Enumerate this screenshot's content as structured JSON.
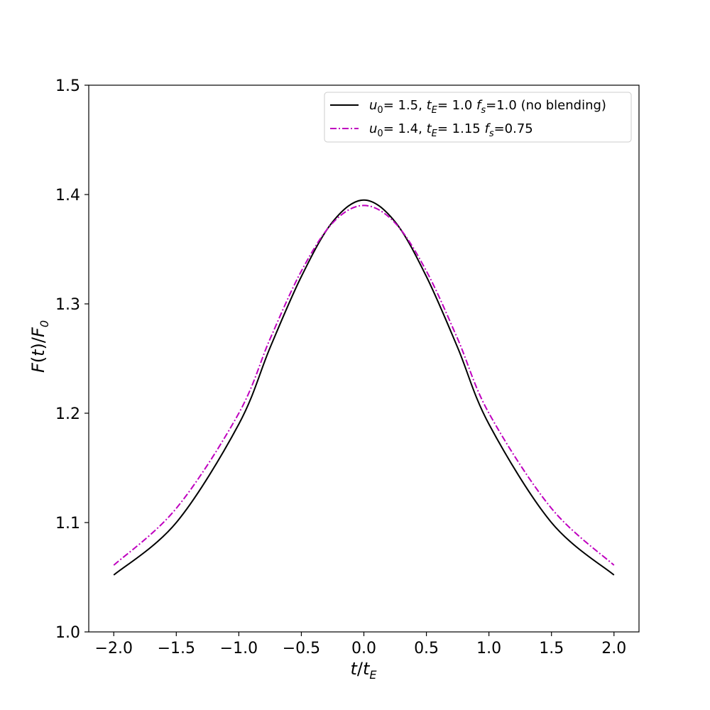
{
  "chart_data": {
    "type": "line",
    "title": "",
    "xlabel": "t/t_E",
    "ylabel": "F(t)/F_0",
    "xlim": [
      -2.2,
      2.2
    ],
    "ylim": [
      1.0,
      1.5
    ],
    "xticks": [
      -2.0,
      -1.5,
      -1.0,
      -0.5,
      0.0,
      0.5,
      1.0,
      1.5,
      2.0
    ],
    "xtick_labels": [
      "−2.0",
      "−1.5",
      "−1.0",
      "−0.5",
      "0.0",
      "0.5",
      "1.0",
      "1.5",
      "2.0"
    ],
    "yticks": [
      1.0,
      1.1,
      1.2,
      1.3,
      1.4,
      1.5
    ],
    "ytick_labels": [
      "1.0",
      "1.1",
      "1.2",
      "1.3",
      "1.4",
      "1.5"
    ],
    "grid": false,
    "legend_position": "top-right",
    "x": [
      -2.0,
      -1.5,
      -1.0,
      -0.75,
      -0.5,
      -0.25,
      0.0,
      0.25,
      0.5,
      0.75,
      1.0,
      1.5,
      2.0
    ],
    "series": [
      {
        "name": "u_0= 1.5, t_E= 1.0 f_s=1.0 (no blending)",
        "color": "#000000",
        "linestyle": "solid",
        "values": [
          1.052,
          1.1,
          1.19,
          1.26,
          1.325,
          1.375,
          1.395,
          1.375,
          1.325,
          1.26,
          1.19,
          1.1,
          1.052
        ]
      },
      {
        "name": "u_0= 1.4, t_E= 1.15 f_s=0.75",
        "color": "#bf00bf",
        "linestyle": "dashdot",
        "values": [
          1.061,
          1.113,
          1.2,
          1.268,
          1.33,
          1.374,
          1.39,
          1.374,
          1.33,
          1.268,
          1.2,
          1.113,
          1.061
        ]
      }
    ],
    "legend_entries": [
      {
        "u0_label": "u",
        "u0_sub": "0",
        "u0_val": "= 1.5, ",
        "te_label": "t",
        "te_sub": "E",
        "te_val": "= 1.0 ",
        "fs_label": "f",
        "fs_sub": "s",
        "fs_val": "=1.0 (no blending)"
      },
      {
        "u0_label": "u",
        "u0_sub": "0",
        "u0_val": "= 1.4, ",
        "te_label": "t",
        "te_sub": "E",
        "te_val": "= 1.15 ",
        "fs_label": "f",
        "fs_sub": "s",
        "fs_val": "=0.75"
      }
    ],
    "axis_text": {
      "x_main": "t",
      "x_slash": "/",
      "x_den": "t",
      "x_den_sub": "E",
      "y_num": "F",
      "y_open": "(",
      "y_t": "t",
      "y_close": ")",
      "y_slash": "/",
      "y_den": "F",
      "y_den_sub": "0"
    }
  }
}
